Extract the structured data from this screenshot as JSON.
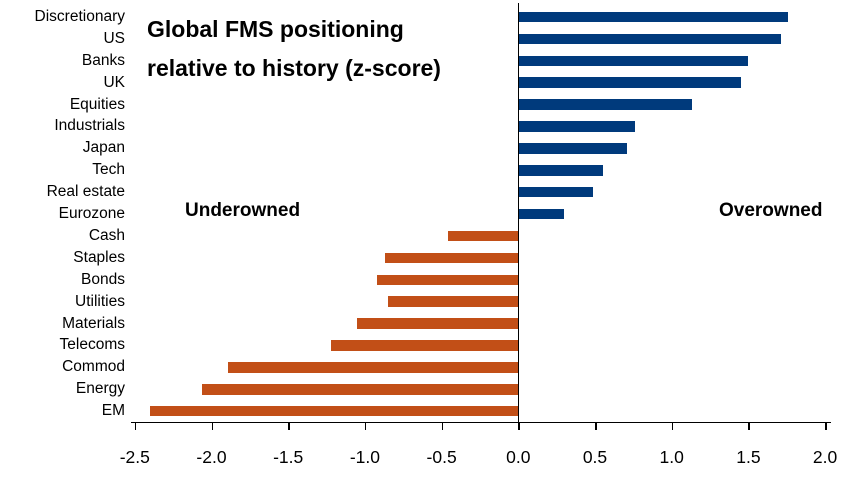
{
  "chart_data": {
    "type": "bar",
    "orientation": "horizontal",
    "title_lines": [
      "Global FMS positioning",
      "relative to history (z-score)"
    ],
    "categories": [
      "Discretionary",
      "US",
      "Banks",
      "UK",
      "Equities",
      "Industrials",
      "Japan",
      "Tech",
      "Real estate",
      "Eurozone",
      "Cash",
      "Staples",
      "Bonds",
      "Utilities",
      "Materials",
      "Telecoms",
      "Commod",
      "Energy",
      "EM"
    ],
    "values": [
      1.76,
      1.71,
      1.5,
      1.45,
      1.13,
      0.76,
      0.71,
      0.55,
      0.49,
      0.3,
      -0.46,
      -0.87,
      -0.92,
      -0.85,
      -1.05,
      -1.22,
      -1.89,
      -2.06,
      -2.4
    ],
    "annotations": {
      "left": "Underowned",
      "right": "Overowned"
    },
    "x_tick_labels": [
      "-2.5",
      "-2.0",
      "-1.5",
      "-1.0",
      "-0.5",
      "0.0",
      "0.5",
      "1.0",
      "1.5",
      "2.0"
    ],
    "xlim": [
      -2.5,
      2.0
    ],
    "grid": false,
    "legend": false,
    "colors": {
      "positive": "#003a7c",
      "negative": "#c24f17",
      "axis": "#000000",
      "text": "#000000"
    }
  }
}
